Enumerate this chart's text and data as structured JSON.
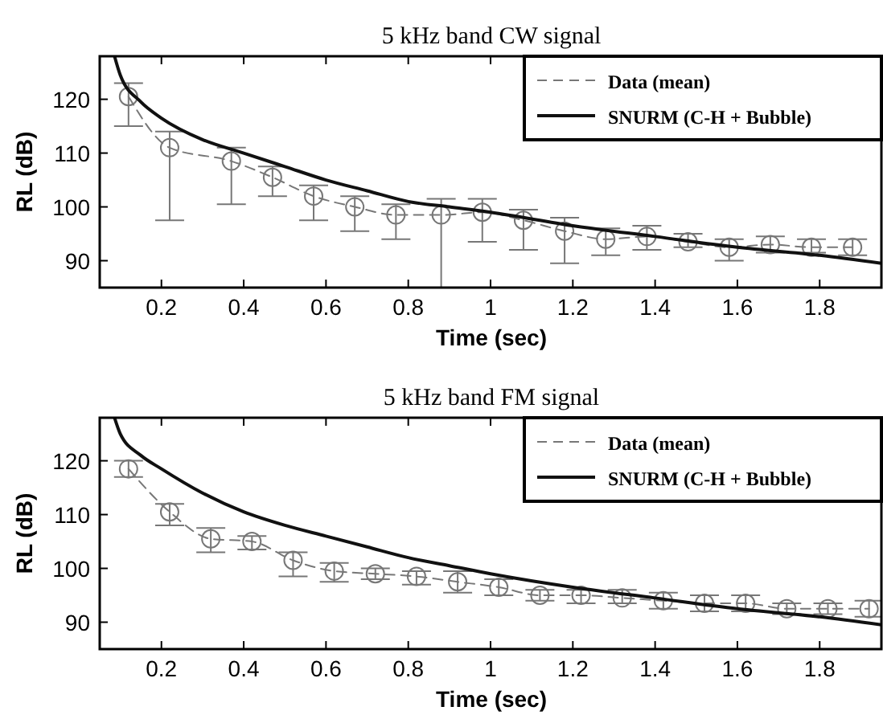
{
  "chart_data": [
    {
      "type": "line",
      "title": "5 kHz band CW signal",
      "xlabel": "Time (sec)",
      "ylabel": "RL (dB)",
      "xlim": [
        0.05,
        1.95
      ],
      "ylim": [
        85,
        128
      ],
      "xticks": [
        0.2,
        0.4,
        0.6,
        0.8,
        1,
        1.2,
        1.4,
        1.6,
        1.8
      ],
      "yticks": [
        90,
        100,
        110,
        120
      ],
      "legend": "top right",
      "series": [
        {
          "name": "Data (mean)",
          "color": "#777777",
          "line_style": "dashed",
          "marker": "circle",
          "x": [
            0.12,
            0.22,
            0.37,
            0.47,
            0.57,
            0.67,
            0.77,
            0.88,
            0.98,
            1.08,
            1.18,
            1.28,
            1.38,
            1.48,
            1.58,
            1.68,
            1.78,
            1.88
          ],
          "values": [
            120.5,
            111,
            108.5,
            105.5,
            102,
            100,
            98.5,
            98.5,
            99,
            97.5,
            95.5,
            94,
            94.5,
            93.5,
            92.5,
            93,
            92.5,
            92.5
          ],
          "errors": [
            [
              115,
              123
            ],
            [
              97.5,
              114
            ],
            [
              100.5,
              111
            ],
            [
              102,
              107.5
            ],
            [
              97.5,
              104
            ],
            [
              95.5,
              102
            ],
            [
              94,
              100.5
            ],
            [
              85,
              101.5
            ],
            [
              93.5,
              101.5
            ],
            [
              92,
              99.5
            ],
            [
              89.5,
              98
            ],
            [
              91,
              96
            ],
            [
              92,
              96.5
            ],
            [
              92.5,
              95
            ],
            [
              90,
              94
            ],
            [
              91.5,
              94.5
            ],
            [
              91.5,
              94
            ],
            [
              91,
              94
            ]
          ]
        },
        {
          "name": "SNURM (C-H + Bubble)",
          "color": "#111111",
          "line_style": "solid",
          "marker": "none",
          "x": [
            0.086,
            0.1,
            0.15,
            0.2,
            0.3,
            0.4,
            0.5,
            0.6,
            0.7,
            0.8,
            0.9,
            1.0,
            1.2,
            1.4,
            1.6,
            1.8,
            1.95
          ],
          "values": [
            128,
            124.5,
            119.5,
            116.5,
            112.5,
            110,
            107.5,
            105,
            103,
            101,
            100,
            99,
            96.5,
            94.5,
            92.5,
            91,
            89.5
          ]
        }
      ]
    },
    {
      "type": "line",
      "title": "5 kHz band FM signal",
      "xlabel": "Time (sec)",
      "ylabel": "RL (dB)",
      "xlim": [
        0.05,
        1.95
      ],
      "ylim": [
        85,
        128
      ],
      "xticks": [
        0.2,
        0.4,
        0.6,
        0.8,
        1,
        1.2,
        1.4,
        1.6,
        1.8
      ],
      "yticks": [
        90,
        100,
        110,
        120
      ],
      "legend": "top right",
      "series": [
        {
          "name": "Data (mean)",
          "color": "#777777",
          "line_style": "dashed",
          "marker": "circle",
          "x": [
            0.12,
            0.22,
            0.32,
            0.42,
            0.52,
            0.62,
            0.72,
            0.82,
            0.92,
            1.02,
            1.12,
            1.22,
            1.32,
            1.42,
            1.52,
            1.62,
            1.72,
            1.82,
            1.92
          ],
          "values": [
            118.5,
            110.5,
            105.5,
            105,
            101.5,
            99.5,
            99,
            98.5,
            97.5,
            96.5,
            95,
            95,
            94.5,
            94,
            93.5,
            93.5,
            92.5,
            92.5,
            92.5
          ],
          "errors": [
            [
              117,
              120
            ],
            [
              108,
              112
            ],
            [
              103,
              107.5
            ],
            [
              103.5,
              106
            ],
            [
              98.5,
              103
            ],
            [
              97.5,
              101
            ],
            [
              98,
              100
            ],
            [
              97,
              99.5
            ],
            [
              95.5,
              99.5
            ],
            [
              95,
              98
            ],
            [
              94,
              96
            ],
            [
              93.5,
              96
            ],
            [
              93.5,
              96
            ],
            [
              92.5,
              95.5
            ],
            [
              92,
              95
            ],
            [
              92,
              95
            ],
            [
              91.5,
              93.5
            ],
            [
              91.5,
              93.5
            ],
            [
              91,
              94
            ]
          ]
        },
        {
          "name": "SNURM (C-H + Bubble)",
          "color": "#111111",
          "line_style": "solid",
          "marker": "none",
          "x": [
            0.086,
            0.1,
            0.15,
            0.2,
            0.3,
            0.4,
            0.5,
            0.6,
            0.7,
            0.8,
            0.9,
            1.0,
            1.2,
            1.4,
            1.6,
            1.8,
            1.95
          ],
          "values": [
            128,
            125,
            121,
            118.5,
            114,
            110.5,
            108,
            106,
            104,
            102,
            100.5,
            99,
            96.5,
            94.5,
            92.5,
            91,
            89.5
          ]
        }
      ]
    }
  ]
}
